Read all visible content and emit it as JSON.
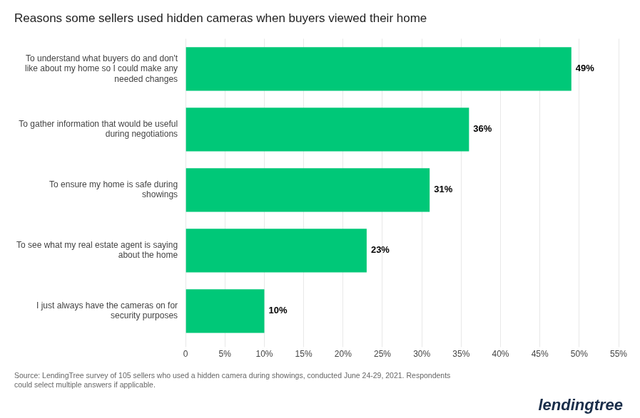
{
  "chart_data": {
    "type": "bar",
    "orientation": "horizontal",
    "title": "Reasons some sellers used hidden cameras when buyers viewed their home",
    "categories": [
      "I just always have the cameras on for\nsecurity purposes",
      "To see what my real estate agent is saying\nabout the home",
      "To ensure my home is safe during\nshowings",
      "To gather information that would be useful\nduring negotiations",
      "To understand what buyers do and don't\nlike about my home so I could make any\nneeded changes"
    ],
    "values": [
      10,
      23,
      31,
      36,
      49
    ],
    "value_labels": [
      "10%",
      "23%",
      "31%",
      "36%",
      "49%"
    ],
    "data_labels": true,
    "color": "#00c878",
    "xlim": [
      0,
      55
    ],
    "xticks": [
      0,
      {
        "value": 5,
        "label": "5%"
      },
      {
        "value": 10,
        "label": "10%"
      },
      {
        "value": 15,
        "label": "15%"
      },
      {
        "value": 20,
        "label": "20%"
      },
      {
        "value": 25,
        "label": "25%"
      },
      {
        "value": 30,
        "label": "30%"
      },
      {
        "value": 35,
        "label": "35%"
      },
      {
        "value": 40,
        "label": "40%"
      },
      {
        "value": 45,
        "label": "45%"
      },
      {
        "value": 50,
        "label": "50%"
      },
      {
        "value": 55,
        "label": "55%"
      }
    ],
    "grid": true,
    "annotations": [
      "Source: LendingTree survey of 105 sellers who used a hidden camera during showings, conducted June 24-29, 2021. Respondents\ncould select multiple answers if applicable.",
      "lendingtree"
    ]
  }
}
